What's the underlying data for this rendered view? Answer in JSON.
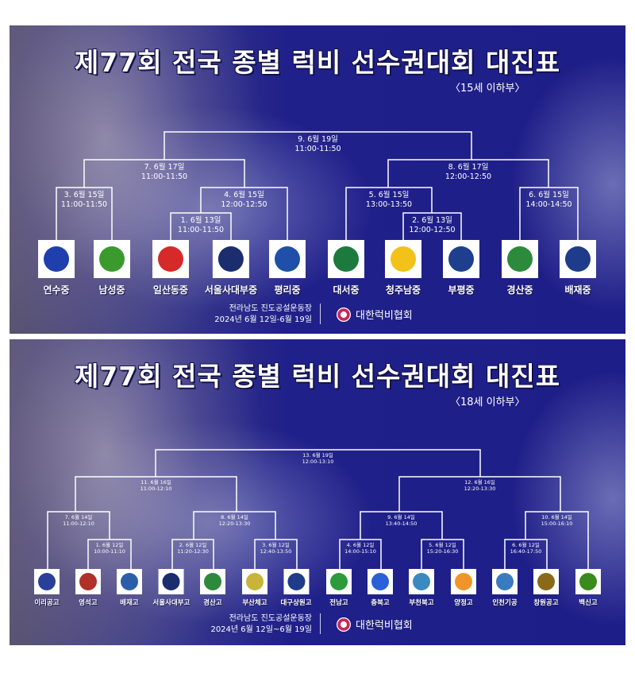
{
  "panels": [
    {
      "title": "제77회 전국 종별 럭비 선수권대회 대진표",
      "division": "〈15세 이하부〉",
      "matches": [
        {
          "no": "9. 6월 19일",
          "time": "11:00-11:50"
        },
        {
          "no": "7. 6월 17일",
          "time": "11:00-11:50"
        },
        {
          "no": "8. 6월 17일",
          "time": "12:00-12:50"
        },
        {
          "no": "3. 6월 15일",
          "time": "11:00-11:50"
        },
        {
          "no": "4. 6월 15일",
          "time": "12:00-12:50"
        },
        {
          "no": "5. 6월 15일",
          "time": "13:00-13:50"
        },
        {
          "no": "6. 6월 15일",
          "time": "14:00-14:50"
        },
        {
          "no": "1. 6월 13일",
          "time": "11:00-11:50"
        },
        {
          "no": "2. 6월 13일",
          "time": "12:00-12:50"
        }
      ],
      "teams": [
        {
          "name": "연수중",
          "color": "#1f3fae"
        },
        {
          "name": "남성중",
          "color": "#3b9a2e"
        },
        {
          "name": "일산동중",
          "color": "#d62a2a"
        },
        {
          "name": "서울사대부중",
          "color": "#1c2d6e"
        },
        {
          "name": "평리중",
          "color": "#1f4fa8"
        },
        {
          "name": "대서중",
          "color": "#1c7a3e"
        },
        {
          "name": "청주남중",
          "color": "#f2c21b"
        },
        {
          "name": "부평중",
          "color": "#1d3f8e"
        },
        {
          "name": "경산중",
          "color": "#2d8a3c"
        },
        {
          "name": "배재중",
          "color": "#1e3c8a"
        }
      ],
      "venue": "전라남도 진도공설운동장",
      "dates": "2024년 6월 12일-6월 19일",
      "org": "대한럭비협회"
    },
    {
      "title": "제77회 전국 종별 럭비 선수권대회 대진표",
      "division": "〈18세 이하부〉",
      "matches": [
        {
          "no": "13. 6월 19일",
          "time": "12:00-13:10"
        },
        {
          "no": "11. 6월 16일",
          "time": "11:00-12:10"
        },
        {
          "no": "12. 6월 16일",
          "time": "12:20-13:30"
        },
        {
          "no": "7. 6월 14일",
          "time": "11:00-12:10"
        },
        {
          "no": "8. 6월 14일",
          "time": "12:20-13:30"
        },
        {
          "no": "9. 6월 14일",
          "time": "13:40-14:50"
        },
        {
          "no": "10. 6월 14일",
          "time": "15:00-16:10"
        },
        {
          "no": "1. 6월 12일",
          "time": "10:00-11:10"
        },
        {
          "no": "2. 6월 12일",
          "time": "11:20-12:30"
        },
        {
          "no": "3. 6월 12일",
          "time": "12:40-13:50"
        },
        {
          "no": "4. 6월 12일",
          "time": "14:00-15:10"
        },
        {
          "no": "5. 6월 12일",
          "time": "15:20-16:30"
        },
        {
          "no": "6. 6월 12일",
          "time": "16:40-17:50"
        }
      ],
      "teams": [
        {
          "name": "이리공고",
          "color": "#2a3f9a"
        },
        {
          "name": "영석고",
          "color": "#b0302a"
        },
        {
          "name": "배재고",
          "color": "#2a5fa8"
        },
        {
          "name": "서울사대부고",
          "color": "#1c2d6e"
        },
        {
          "name": "경산고",
          "color": "#2d8a3c"
        },
        {
          "name": "부산체고",
          "color": "#c9b43a"
        },
        {
          "name": "대구상원고",
          "color": "#1e3c8a"
        },
        {
          "name": "전남고",
          "color": "#2d9a3c"
        },
        {
          "name": "충북고",
          "color": "#2a5fd8"
        },
        {
          "name": "부천북고",
          "color": "#3a8ac0"
        },
        {
          "name": "양정고",
          "color": "#f0952a"
        },
        {
          "name": "인천기공",
          "color": "#3a7ac0"
        },
        {
          "name": "창원공고",
          "color": "#8a6a1a"
        },
        {
          "name": "백신고",
          "color": "#3a8a1e"
        }
      ],
      "venue": "전라남도 진도공설운동장",
      "dates": "2024년 6월 12일~6월 19일",
      "org": "대한럭비협회"
    }
  ]
}
